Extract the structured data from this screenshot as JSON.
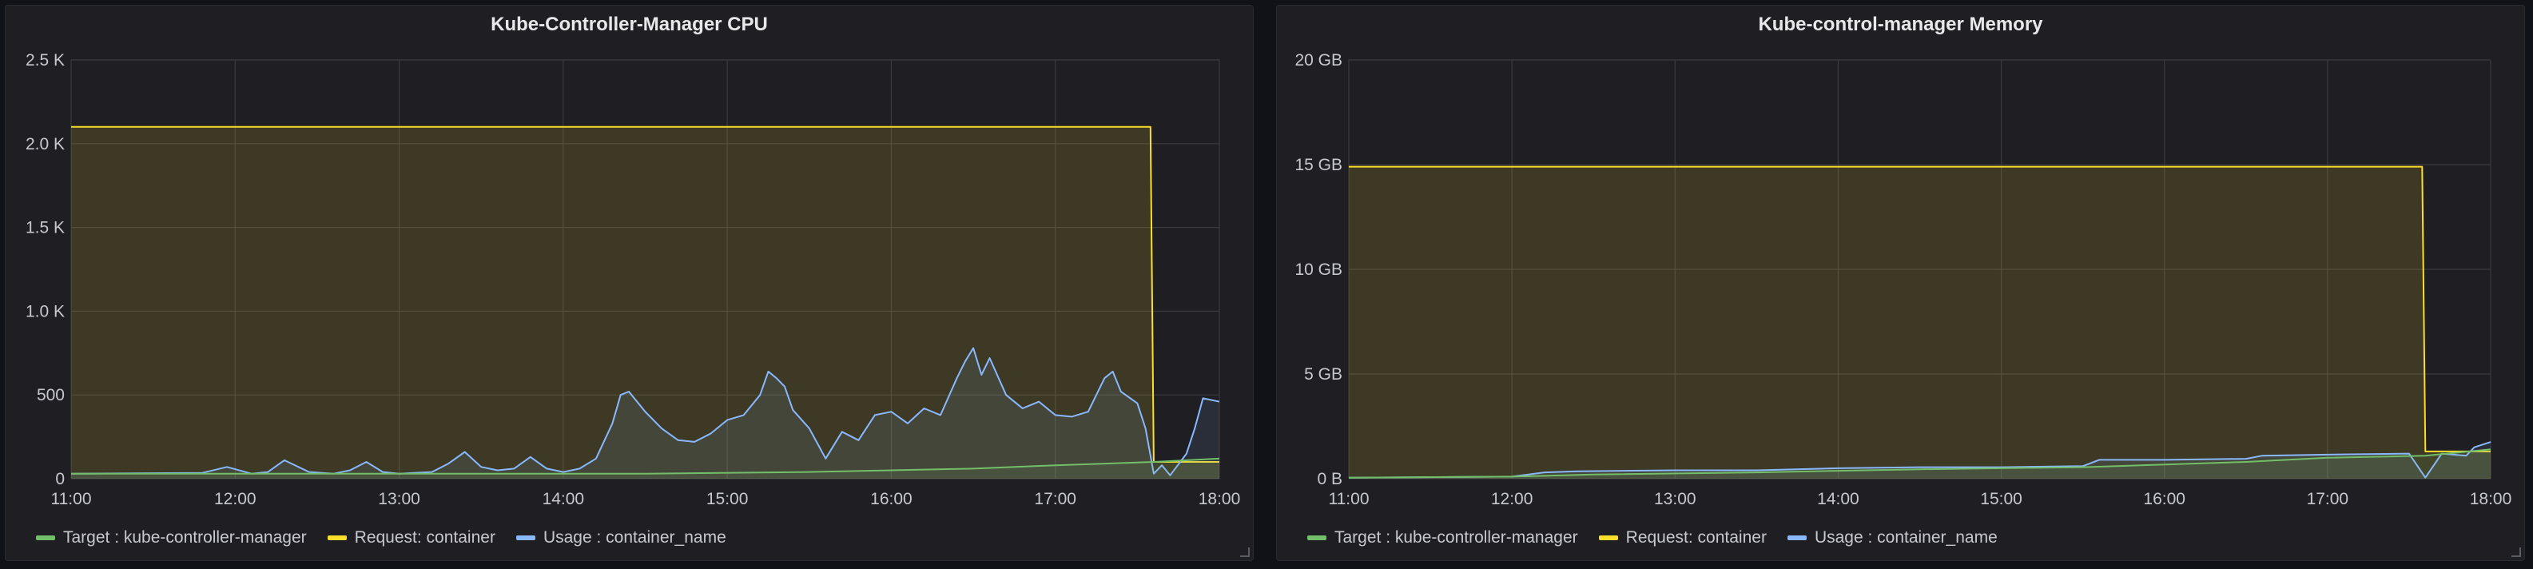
{
  "chart_data": [
    {
      "type": "line",
      "title": "Kube-Controller-Manager CPU",
      "x_ticks": [
        "11:00",
        "12:00",
        "13:00",
        "14:00",
        "15:00",
        "16:00",
        "17:00",
        "18:00"
      ],
      "x_range_hours": [
        11,
        18
      ],
      "y_ticks": [
        "0",
        "500",
        "1.0 K",
        "1.5 K",
        "2.0 K",
        "2.5 K"
      ],
      "ylim": [
        0,
        2500
      ],
      "grid": true,
      "legend_position": "bottom-left",
      "series": [
        {
          "name": "Target : kube-controller-manager",
          "color": "#73bf69",
          "x": [
            11.0,
            12.5,
            13.5,
            14.5,
            15.5,
            16.0,
            16.5,
            17.0,
            17.6,
            18.0
          ],
          "y": [
            30,
            30,
            30,
            30,
            40,
            50,
            60,
            80,
            100,
            120
          ]
        },
        {
          "name": "Request: container",
          "color": "#fade2a",
          "x": [
            11.0,
            17.58,
            17.6,
            18.0
          ],
          "y": [
            2100,
            2100,
            100,
            100
          ],
          "filled": true
        },
        {
          "name": "Usage : container_name",
          "color": "#8ab8ff",
          "x": [
            11.0,
            11.8,
            11.95,
            12.1,
            12.2,
            12.3,
            12.45,
            12.6,
            12.7,
            12.8,
            12.9,
            13.0,
            13.2,
            13.3,
            13.4,
            13.5,
            13.6,
            13.7,
            13.8,
            13.9,
            14.0,
            14.1,
            14.2,
            14.3,
            14.35,
            14.4,
            14.5,
            14.6,
            14.7,
            14.8,
            14.9,
            15.0,
            15.1,
            15.2,
            15.25,
            15.3,
            15.35,
            15.4,
            15.5,
            15.6,
            15.7,
            15.8,
            15.9,
            16.0,
            16.1,
            16.2,
            16.3,
            16.4,
            16.45,
            16.5,
            16.55,
            16.6,
            16.7,
            16.8,
            16.9,
            17.0,
            17.1,
            17.2,
            17.3,
            17.35,
            17.4,
            17.5,
            17.55,
            17.6,
            17.65,
            17.7,
            17.8,
            17.85,
            17.9,
            18.0
          ],
          "y": [
            30,
            35,
            70,
            30,
            40,
            110,
            40,
            30,
            50,
            100,
            40,
            30,
            40,
            90,
            160,
            70,
            50,
            60,
            130,
            60,
            40,
            60,
            120,
            330,
            500,
            520,
            400,
            300,
            230,
            220,
            270,
            350,
            380,
            500,
            640,
            600,
            550,
            410,
            300,
            120,
            280,
            230,
            380,
            400,
            330,
            420,
            380,
            600,
            700,
            780,
            620,
            720,
            500,
            420,
            460,
            380,
            370,
            400,
            600,
            640,
            520,
            450,
            300,
            30,
            80,
            20,
            150,
            300,
            480,
            460
          ]
        }
      ]
    },
    {
      "type": "line",
      "title": "Kube-control-manager Memory",
      "x_ticks": [
        "11:00",
        "12:00",
        "13:00",
        "14:00",
        "15:00",
        "16:00",
        "17:00",
        "18:00"
      ],
      "x_range_hours": [
        11,
        18
      ],
      "y_ticks": [
        "0 B",
        "5 GB",
        "10 GB",
        "15 GB",
        "20 GB"
      ],
      "ylim": [
        0,
        20
      ],
      "y_unit": "GB",
      "grid": true,
      "legend_position": "bottom-left",
      "series": [
        {
          "name": "Target : kube-controller-manager",
          "color": "#73bf69",
          "x": [
            11.0,
            12.0,
            12.5,
            13.5,
            14.5,
            15.5,
            16.5,
            17.0,
            17.6,
            18.0
          ],
          "y": [
            0.05,
            0.1,
            0.2,
            0.3,
            0.45,
            0.55,
            0.8,
            1.0,
            1.1,
            1.4
          ]
        },
        {
          "name": "Request: container",
          "color": "#fade2a",
          "x": [
            11.0,
            17.58,
            17.6,
            18.0
          ],
          "y": [
            14.9,
            14.9,
            1.3,
            1.3
          ],
          "filled": true
        },
        {
          "name": "Usage : container_name",
          "color": "#8ab8ff",
          "x": [
            11.0,
            12.0,
            12.2,
            12.4,
            13.0,
            13.5,
            14.0,
            14.5,
            15.0,
            15.5,
            15.6,
            16.0,
            16.5,
            16.6,
            17.0,
            17.5,
            17.6,
            17.7,
            17.85,
            17.9,
            18.0
          ],
          "y": [
            0.05,
            0.1,
            0.3,
            0.35,
            0.4,
            0.4,
            0.5,
            0.55,
            0.55,
            0.6,
            0.9,
            0.9,
            0.95,
            1.1,
            1.15,
            1.2,
            0.05,
            1.2,
            1.1,
            1.5,
            1.75
          ]
        }
      ]
    }
  ]
}
